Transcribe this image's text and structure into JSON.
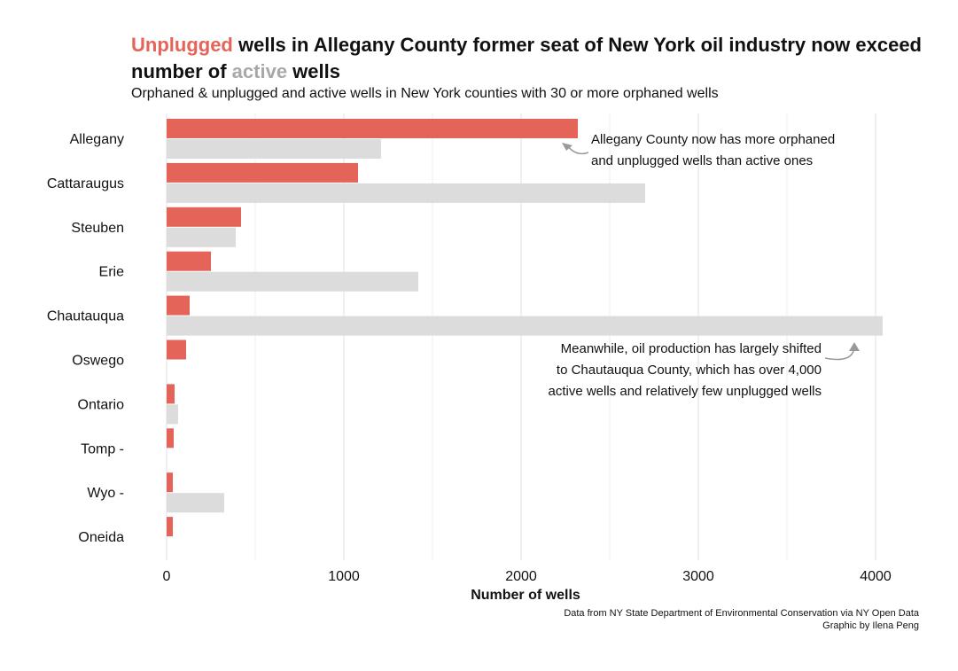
{
  "title": {
    "part1": "Unplugged",
    "part2": " wells in Allegany County former seat of New York oil industry now exceed number of ",
    "part3": "active",
    "part4": " wells"
  },
  "subtitle": "Orphaned & unplugged and active wells in New York counties with 30 or more orphaned wells",
  "caption": {
    "line1": "Data from NY State Department of Environmental Conservation via NY Open Data",
    "line2": "Graphic by Ilena Peng"
  },
  "colors": {
    "unplugged": "#e5645a",
    "active": "#dcdcdc",
    "grid": "#ececec",
    "arrow": "#999999"
  },
  "chart_data": {
    "type": "bar",
    "orientation": "horizontal",
    "categories": [
      "Allegany",
      "Cattaraugus",
      "Steuben",
      "Erie",
      "Chautauqua",
      "Oswego",
      "Ontario",
      "Tomp      -",
      "Wyo       -",
      "Oneida"
    ],
    "series": [
      {
        "color": "#e5645a",
        "values": [
          2320,
          1080,
          420,
          250,
          130,
          110,
          45,
          40,
          35,
          35
        ]
      },
      {
        "color": "#dcdcdc",
        "values": [
          1210,
          2700,
          390,
          1420,
          4040,
          0,
          65,
          0,
          325,
          0
        ]
      }
    ],
    "xlabel": "Number of wells",
    "xlim": [
      0,
      4050
    ],
    "xticks": [
      0,
      1000,
      2000,
      3000,
      4000
    ],
    "grid": true,
    "annotations": [
      {
        "lines": [
          "Allegany County now has more orphaned",
          "and unplugged wells than active ones"
        ]
      },
      {
        "lines": [
          "Meanwhile, oil production has largely shifted",
          "to Chautauqua County, which has over 4,000",
          "active wells and relatively few unplugged wells"
        ]
      }
    ]
  }
}
